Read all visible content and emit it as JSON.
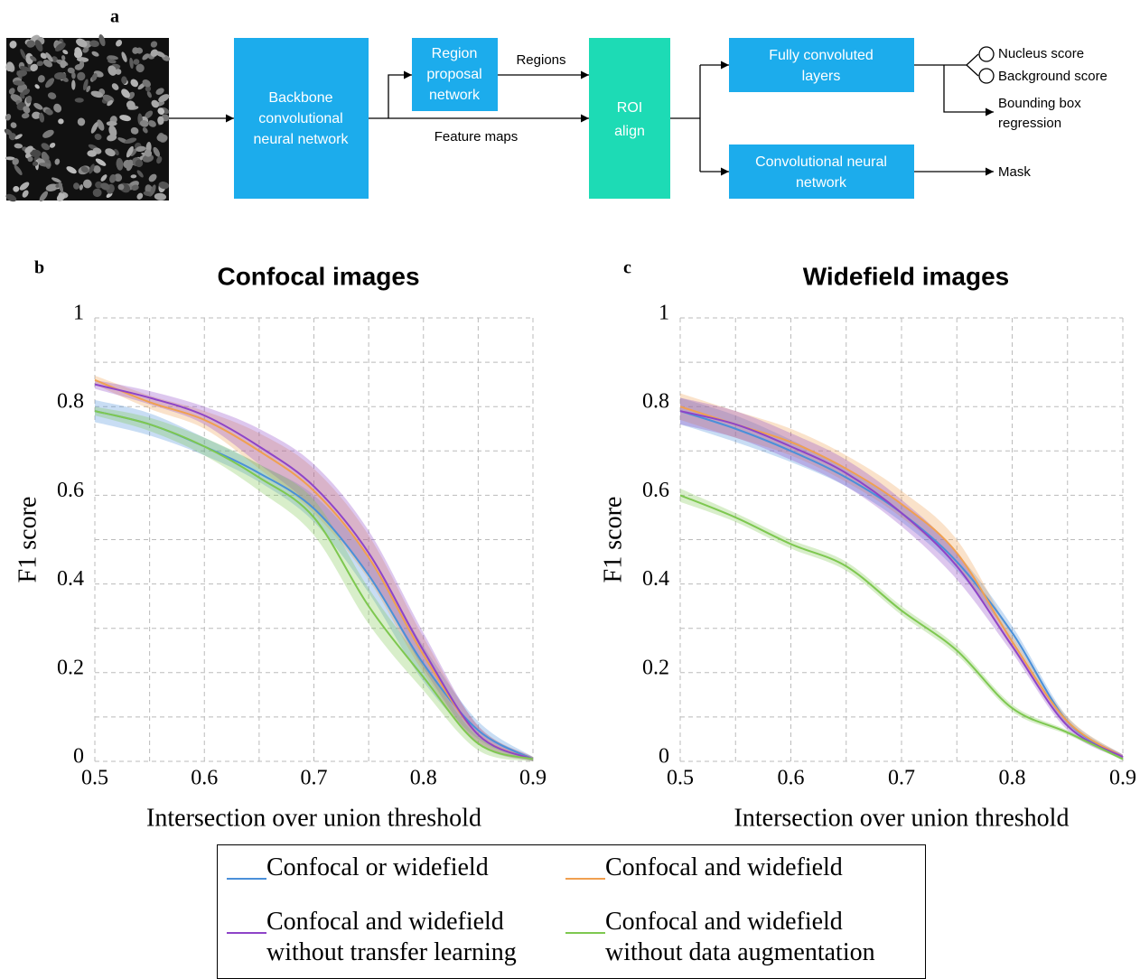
{
  "panels": [
    "a",
    "b",
    "c"
  ],
  "diagram": {
    "backbone": [
      "Backbone",
      "convolutional",
      "neural network"
    ],
    "rpn": [
      "Region",
      "proposal",
      "network"
    ],
    "roi": [
      "ROI",
      "align"
    ],
    "fcl": [
      "Fully convoluted",
      "layers"
    ],
    "cnn": [
      "Convolutional neural",
      "network"
    ],
    "regions": "Regions",
    "feature_maps": "Feature maps",
    "nucleus_score": "Nucleus score",
    "background_score": "Background score",
    "bbox": [
      "Bounding box",
      "regression"
    ],
    "mask": "Mask"
  },
  "chart_data": [
    {
      "type": "line",
      "title": "Confocal images",
      "x_label": "Intersection over union threshold",
      "y_label": "F1 score",
      "x": [
        0.5,
        0.55,
        0.6,
        0.65,
        0.7,
        0.75,
        0.8,
        0.85,
        0.9
      ],
      "xlim": [
        0.5,
        0.9
      ],
      "ylim": [
        0,
        1
      ],
      "xticks": [
        0.5,
        0.6,
        0.7,
        0.8,
        0.9
      ],
      "yticks": [
        0,
        0.2,
        0.4,
        0.6,
        0.8,
        1
      ],
      "xminorticks": [
        0.55,
        0.65,
        0.75,
        0.85
      ],
      "yminorticks": [
        0.1,
        0.3,
        0.5,
        0.7,
        0.9
      ],
      "grid": true,
      "series": [
        {
          "name": "Confocal or widefield",
          "color": "#4a90d9",
          "values": [
            0.79,
            0.76,
            0.71,
            0.65,
            0.57,
            0.42,
            0.22,
            0.07,
            0.005
          ],
          "errors": [
            0.025,
            0.025,
            0.02,
            0.02,
            0.03,
            0.04,
            0.04,
            0.02,
            0.005
          ]
        },
        {
          "name": "Confocal and widefield",
          "color": "#f0a050",
          "values": [
            0.86,
            0.81,
            0.77,
            0.7,
            0.61,
            0.46,
            0.24,
            0.06,
            0.005
          ],
          "errors": [
            0.01,
            0.015,
            0.02,
            0.04,
            0.05,
            0.05,
            0.04,
            0.02,
            0.005
          ]
        },
        {
          "name": "Confocal and widefield without transfer learning",
          "color": "#8e44c8",
          "values": [
            0.85,
            0.82,
            0.78,
            0.71,
            0.62,
            0.47,
            0.25,
            0.06,
            0.005
          ],
          "errors": [
            0.01,
            0.015,
            0.02,
            0.04,
            0.05,
            0.05,
            0.04,
            0.02,
            0.005
          ]
        },
        {
          "name": "Confocal and widefield without data augmentation",
          "color": "#7ec850",
          "values": [
            0.79,
            0.76,
            0.71,
            0.64,
            0.55,
            0.35,
            0.19,
            0.04,
            0.005
          ],
          "errors": [
            0.01,
            0.015,
            0.02,
            0.03,
            0.04,
            0.04,
            0.03,
            0.015,
            0.005
          ]
        }
      ]
    },
    {
      "type": "line",
      "title": "Widefield images",
      "x_label": "Intersection over union threshold",
      "y_label": "F1 score",
      "x": [
        0.5,
        0.55,
        0.6,
        0.65,
        0.7,
        0.75,
        0.8,
        0.85,
        0.9
      ],
      "xlim": [
        0.5,
        0.9
      ],
      "ylim": [
        0,
        1
      ],
      "xticks": [
        0.5,
        0.6,
        0.7,
        0.8,
        0.9
      ],
      "yticks": [
        0,
        0.2,
        0.4,
        0.6,
        0.8,
        1
      ],
      "xminorticks": [
        0.55,
        0.65,
        0.75,
        0.85
      ],
      "yminorticks": [
        0.1,
        0.3,
        0.5,
        0.7,
        0.9
      ],
      "grid": true,
      "series": [
        {
          "color": "#4a90d9",
          "values": [
            0.79,
            0.75,
            0.7,
            0.64,
            0.56,
            0.45,
            0.29,
            0.09,
            0.01
          ],
          "errors": [
            0.03,
            0.03,
            0.025,
            0.02,
            0.02,
            0.02,
            0.015,
            0.01,
            0.005
          ]
        },
        {
          "color": "#f0a050",
          "values": [
            0.8,
            0.76,
            0.72,
            0.66,
            0.58,
            0.47,
            0.27,
            0.09,
            0.01
          ],
          "errors": [
            0.03,
            0.03,
            0.03,
            0.03,
            0.03,
            0.03,
            0.015,
            0.01,
            0.005
          ]
        },
        {
          "color": "#8e44c8",
          "values": [
            0.79,
            0.76,
            0.71,
            0.65,
            0.56,
            0.44,
            0.26,
            0.08,
            0.01
          ],
          "errors": [
            0.03,
            0.03,
            0.03,
            0.03,
            0.03,
            0.03,
            0.015,
            0.01,
            0.005
          ]
        },
        {
          "color": "#7ec850",
          "values": [
            0.6,
            0.55,
            0.49,
            0.44,
            0.34,
            0.25,
            0.12,
            0.065,
            0.005
          ],
          "errors": [
            0.015,
            0.01,
            0.01,
            0.01,
            0.01,
            0.01,
            0.008,
            0.005,
            0.003
          ]
        }
      ]
    }
  ]
}
